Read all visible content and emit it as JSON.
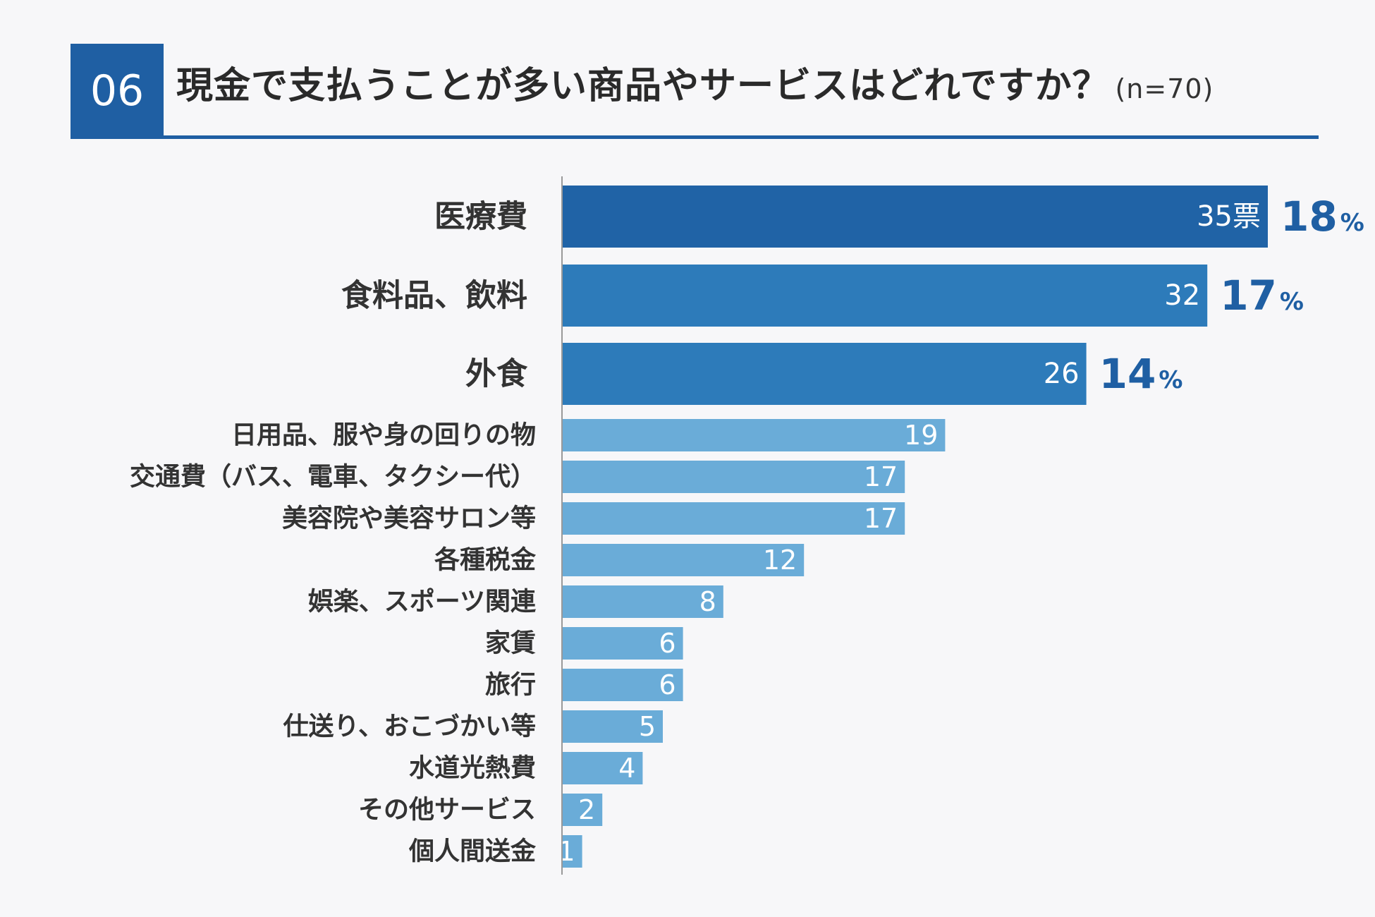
{
  "header": {
    "number": "06",
    "title": "現金で支払うことが多い商品やサービスはどれですか？",
    "sample_size": "(n=70)"
  },
  "colors": {
    "header": "#1f5fa3",
    "top_bar_1": "#2063a6",
    "top_bar_2": "#2d7bba",
    "other_bar": "#6aacd8",
    "pct_text": "#1f5fa3",
    "label_text": "#333333"
  },
  "chart_data": {
    "type": "bar",
    "orientation": "horizontal",
    "categories": [
      "医療費",
      "食料品、飲料",
      "外食",
      "日用品、服や身の回りの物",
      "交通費（バス、電車、タクシー代）",
      "美容院や美容サロン等",
      "各種税金",
      "娯楽、スポーツ関連",
      "家賃",
      "旅行",
      "仕送り、おこづかい等",
      "水道光熱費",
      "その他サービス",
      "個人間送金"
    ],
    "values": [
      35,
      32,
      26,
      19,
      17,
      17,
      12,
      8,
      6,
      6,
      5,
      4,
      2,
      1
    ],
    "value_labels": [
      "35票",
      "32",
      "26",
      "19",
      "17",
      "17",
      "12",
      "8",
      "6",
      "6",
      "5",
      "4",
      "2",
      "1"
    ],
    "percent_labels": [
      {
        "index": 0,
        "value": "18",
        "unit": "%"
      },
      {
        "index": 1,
        "value": "17",
        "unit": "%"
      },
      {
        "index": 2,
        "value": "14",
        "unit": "%"
      }
    ],
    "xlim": [
      0,
      35
    ],
    "grid": false,
    "legend": "none"
  }
}
